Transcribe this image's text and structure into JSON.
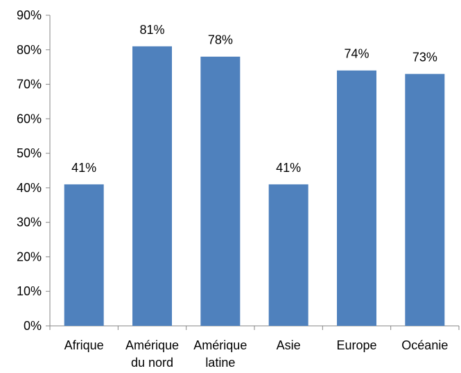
{
  "chart_data": {
    "type": "bar",
    "categories": [
      [
        "Afrique"
      ],
      [
        "Amérique",
        "du nord"
      ],
      [
        "Amérique",
        "latine"
      ],
      [
        "Asie"
      ],
      [
        "Europe"
      ],
      [
        "Océanie"
      ]
    ],
    "values": [
      41,
      81,
      78,
      41,
      74,
      73
    ],
    "data_labels": [
      "41%",
      "81%",
      "78%",
      "41%",
      "74%",
      "73%"
    ],
    "y_ticks": [
      "0%",
      "10%",
      "20%",
      "30%",
      "40%",
      "50%",
      "60%",
      "70%",
      "80%",
      "90%"
    ],
    "ylim": [
      0,
      90
    ],
    "bar_color": "#4F81BD",
    "grid": false,
    "legend": "none"
  }
}
